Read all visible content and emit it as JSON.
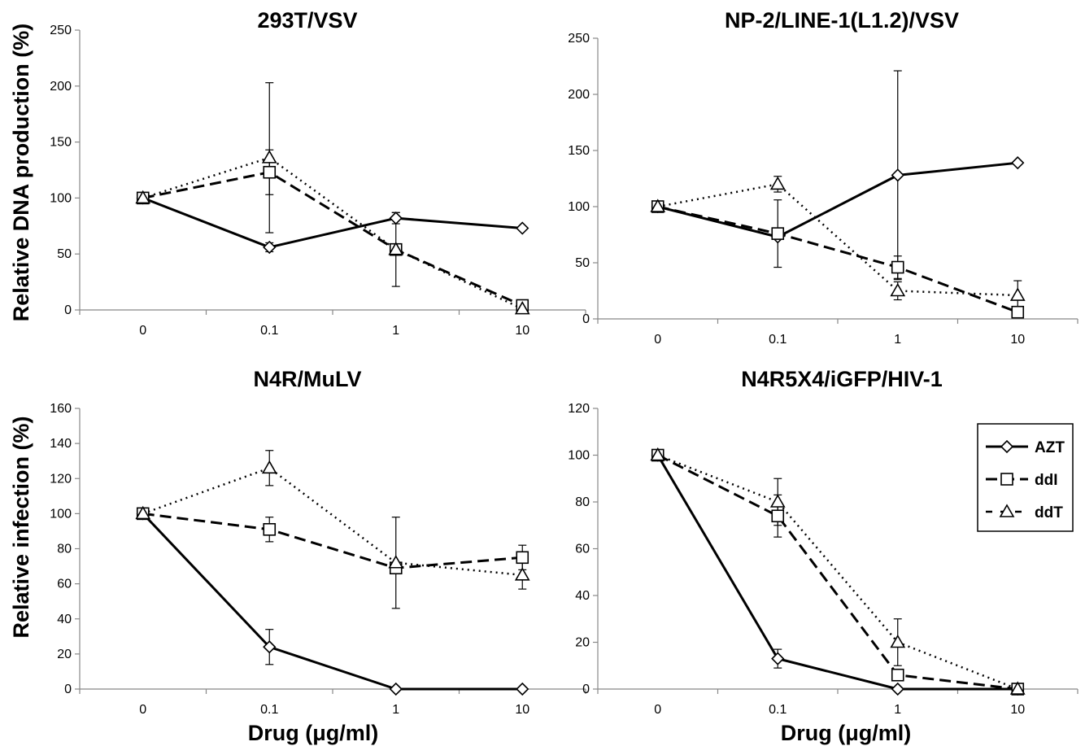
{
  "figure": {
    "ylabel_top": "Relative DNA production (%)",
    "ylabel_bottom": "Relative infection (%)",
    "xlabel": "Drug (μg/ml)"
  },
  "legend": [
    {
      "name": "AZT",
      "marker": "diamond",
      "line": "solid"
    },
    {
      "name": "ddI",
      "marker": "square",
      "line": "dashed"
    },
    {
      "name": "ddT",
      "marker": "triangle",
      "line": "dotted"
    }
  ],
  "chart_data": [
    {
      "type": "line",
      "title": "293T/VSV",
      "categories": [
        "0",
        "0.1",
        "1",
        "10"
      ],
      "ylim": [
        0,
        250
      ],
      "yticks": [
        0,
        50,
        100,
        150,
        200,
        250
      ],
      "series": [
        {
          "name": "AZT",
          "values": [
            100,
            56,
            82,
            73
          ],
          "err": [
            0,
            4,
            5,
            0
          ]
        },
        {
          "name": "ddI",
          "values": [
            100,
            123,
            54,
            4
          ],
          "err": [
            0,
            20,
            4,
            0
          ]
        },
        {
          "name": "ddT",
          "values": [
            100,
            136,
            54,
            1
          ],
          "err": [
            0,
            67,
            33,
            0
          ]
        }
      ]
    },
    {
      "type": "line",
      "title": "NP-2/LINE-1(L1.2)/VSV",
      "categories": [
        "0",
        "0.1",
        "1",
        "10"
      ],
      "ylim": [
        0,
        250
      ],
      "yticks": [
        0,
        50,
        100,
        150,
        200,
        250
      ],
      "series": [
        {
          "name": "AZT",
          "values": [
            100,
            73,
            128,
            139
          ],
          "err": [
            0,
            0,
            93,
            0
          ]
        },
        {
          "name": "ddI",
          "values": [
            100,
            76,
            46,
            6
          ],
          "err": [
            0,
            30,
            10,
            0
          ]
        },
        {
          "name": "ddT",
          "values": [
            100,
            120,
            25,
            21
          ],
          "err": [
            0,
            7,
            8,
            13
          ]
        }
      ]
    },
    {
      "type": "line",
      "title": "N4R/MuLV",
      "categories": [
        "0",
        "0.1",
        "1",
        "10"
      ],
      "ylim": [
        0,
        160
      ],
      "yticks": [
        0,
        20,
        40,
        60,
        80,
        100,
        120,
        140,
        160
      ],
      "series": [
        {
          "name": "AZT",
          "values": [
            100,
            24,
            0,
            0
          ],
          "err": [
            0,
            10,
            0,
            0
          ]
        },
        {
          "name": "ddI",
          "values": [
            100,
            91,
            69,
            75
          ],
          "err": [
            0,
            7,
            0,
            7
          ]
        },
        {
          "name": "ddT",
          "values": [
            100,
            126,
            72,
            65
          ],
          "err": [
            0,
            10,
            26,
            8
          ]
        }
      ]
    },
    {
      "type": "line",
      "title": "N4R5X4/iGFP/HIV-1",
      "categories": [
        "0",
        "0.1",
        "1",
        "10"
      ],
      "ylim": [
        0,
        120
      ],
      "yticks": [
        0,
        20,
        40,
        60,
        80,
        100,
        120
      ],
      "series": [
        {
          "name": "AZT",
          "values": [
            100,
            13,
            0,
            0
          ],
          "err": [
            0,
            4,
            0,
            0
          ]
        },
        {
          "name": "ddI",
          "values": [
            100,
            74,
            6,
            0
          ],
          "err": [
            0,
            9,
            0,
            0
          ]
        },
        {
          "name": "ddT",
          "values": [
            100,
            80,
            20,
            0
          ],
          "err": [
            0,
            10,
            10,
            0
          ]
        }
      ]
    }
  ]
}
